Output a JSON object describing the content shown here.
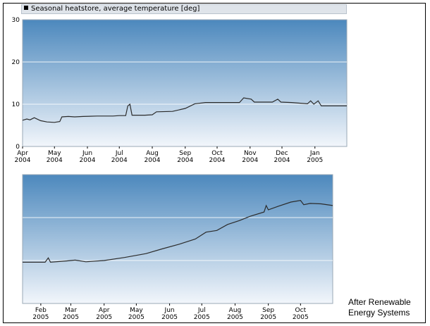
{
  "legend": {
    "label": "Seasonal heatstore, average temperature [deg]"
  },
  "note": {
    "line1": "After Renewable",
    "line2": "Energy Systems"
  },
  "colors": {
    "panel_top": "#4c88bd",
    "panel_bottom": "#f2f6fb",
    "line": "#2b2b2b",
    "grid": "#ffffff"
  },
  "chart_data": [
    {
      "type": "area",
      "title": "",
      "legend": [
        "Seasonal heatstore, average temperature [deg]"
      ],
      "ylim": [
        0,
        30
      ],
      "yticks": [
        "0",
        "10",
        "20",
        "30"
      ],
      "xlim": [
        "2004-04-01",
        "2005-01-31"
      ],
      "xticks": [
        {
          "date": "2004-04-01",
          "l1": "Apr",
          "l2": "2004"
        },
        {
          "date": "2004-05-01",
          "l1": "May",
          "l2": "2004"
        },
        {
          "date": "2004-06-01",
          "l1": "Jun",
          "l2": "2004"
        },
        {
          "date": "2004-07-01",
          "l1": "Jul",
          "l2": "2004"
        },
        {
          "date": "2004-08-01",
          "l1": "Aug",
          "l2": "2004"
        },
        {
          "date": "2004-09-01",
          "l1": "Sep",
          "l2": "2004"
        },
        {
          "date": "2004-10-01",
          "l1": "Oct",
          "l2": "2004"
        },
        {
          "date": "2004-11-01",
          "l1": "Nov",
          "l2": "2004"
        },
        {
          "date": "2004-12-01",
          "l1": "Dec",
          "l2": "2004"
        },
        {
          "date": "2005-01-01",
          "l1": "Jan",
          "l2": "2005"
        }
      ],
      "grid": true,
      "series": [
        {
          "name": "Seasonal heatstore, average temperature [deg]",
          "points": [
            [
              "2004-04-01",
              6.2
            ],
            [
              "2004-04-05",
              6.5
            ],
            [
              "2004-04-08",
              6.3
            ],
            [
              "2004-04-12",
              6.8
            ],
            [
              "2004-04-18",
              6.1
            ],
            [
              "2004-04-24",
              5.8
            ],
            [
              "2004-05-01",
              5.7
            ],
            [
              "2004-05-06",
              5.9
            ],
            [
              "2004-05-08",
              7.0
            ],
            [
              "2004-05-14",
              7.1
            ],
            [
              "2004-05-20",
              7.0
            ],
            [
              "2004-05-28",
              7.1
            ],
            [
              "2004-06-10",
              7.2
            ],
            [
              "2004-06-25",
              7.2
            ],
            [
              "2004-07-01",
              7.3
            ],
            [
              "2004-07-07",
              7.3
            ],
            [
              "2004-07-09",
              9.6
            ],
            [
              "2004-07-11",
              10.0
            ],
            [
              "2004-07-13",
              7.4
            ],
            [
              "2004-07-25",
              7.4
            ],
            [
              "2004-08-01",
              7.5
            ],
            [
              "2004-08-05",
              8.2
            ],
            [
              "2004-08-20",
              8.3
            ],
            [
              "2004-09-01",
              9.0
            ],
            [
              "2004-09-10",
              10.1
            ],
            [
              "2004-09-20",
              10.4
            ],
            [
              "2004-10-05",
              10.4
            ],
            [
              "2004-10-22",
              10.4
            ],
            [
              "2004-10-26",
              11.5
            ],
            [
              "2004-11-02",
              11.2
            ],
            [
              "2004-11-05",
              10.5
            ],
            [
              "2004-11-22",
              10.5
            ],
            [
              "2004-11-27",
              11.2
            ],
            [
              "2004-11-30",
              10.5
            ],
            [
              "2004-12-10",
              10.4
            ],
            [
              "2004-12-25",
              10.1
            ],
            [
              "2004-12-28",
              10.8
            ],
            [
              "2004-12-31",
              10.0
            ],
            [
              "2005-01-04",
              10.8
            ],
            [
              "2005-01-07",
              9.6
            ],
            [
              "2005-01-15",
              9.6
            ],
            [
              "2005-01-31",
              9.6
            ]
          ]
        }
      ]
    },
    {
      "type": "area",
      "title": "",
      "ylim": [
        0,
        30
      ],
      "xlim": [
        "2005-01-15",
        "2005-10-31"
      ],
      "xticks": [
        {
          "date": "2005-02-01",
          "l1": "Feb",
          "l2": "2005"
        },
        {
          "date": "2005-03-01",
          "l1": "Mar",
          "l2": "2005"
        },
        {
          "date": "2005-04-01",
          "l1": "Apr",
          "l2": "2005"
        },
        {
          "date": "2005-05-01",
          "l1": "May",
          "l2": "2005"
        },
        {
          "date": "2005-06-01",
          "l1": "Jun",
          "l2": "2005"
        },
        {
          "date": "2005-07-01",
          "l1": "Jul",
          "l2": "2005"
        },
        {
          "date": "2005-08-01",
          "l1": "Aug",
          "l2": "2005"
        },
        {
          "date": "2005-09-01",
          "l1": "Sep",
          "l2": "2005"
        },
        {
          "date": "2005-10-01",
          "l1": "Oct",
          "l2": "2005"
        }
      ],
      "grid": true,
      "series": [
        {
          "name": "",
          "points": [
            [
              "2005-01-15",
              9.6
            ],
            [
              "2005-01-28",
              9.6
            ],
            [
              "2005-02-05",
              9.6
            ],
            [
              "2005-02-08",
              10.6
            ],
            [
              "2005-02-10",
              9.6
            ],
            [
              "2005-02-25",
              9.9
            ],
            [
              "2005-03-05",
              10.1
            ],
            [
              "2005-03-15",
              9.7
            ],
            [
              "2005-04-01",
              10.0
            ],
            [
              "2005-04-20",
              10.7
            ],
            [
              "2005-05-10",
              11.6
            ],
            [
              "2005-05-25",
              12.7
            ],
            [
              "2005-06-10",
              13.8
            ],
            [
              "2005-06-25",
              15.0
            ],
            [
              "2005-07-05",
              16.6
            ],
            [
              "2005-07-15",
              17.0
            ],
            [
              "2005-07-25",
              18.4
            ],
            [
              "2005-08-05",
              19.3
            ],
            [
              "2005-08-15",
              20.3
            ],
            [
              "2005-08-28",
              21.3
            ],
            [
              "2005-08-30",
              22.8
            ],
            [
              "2005-09-01",
              21.8
            ],
            [
              "2005-09-10",
              22.6
            ],
            [
              "2005-09-22",
              23.6
            ],
            [
              "2005-10-01",
              24.0
            ],
            [
              "2005-10-04",
              23.0
            ],
            [
              "2005-10-10",
              23.3
            ],
            [
              "2005-10-20",
              23.2
            ],
            [
              "2005-10-31",
              22.8
            ]
          ]
        }
      ]
    }
  ]
}
